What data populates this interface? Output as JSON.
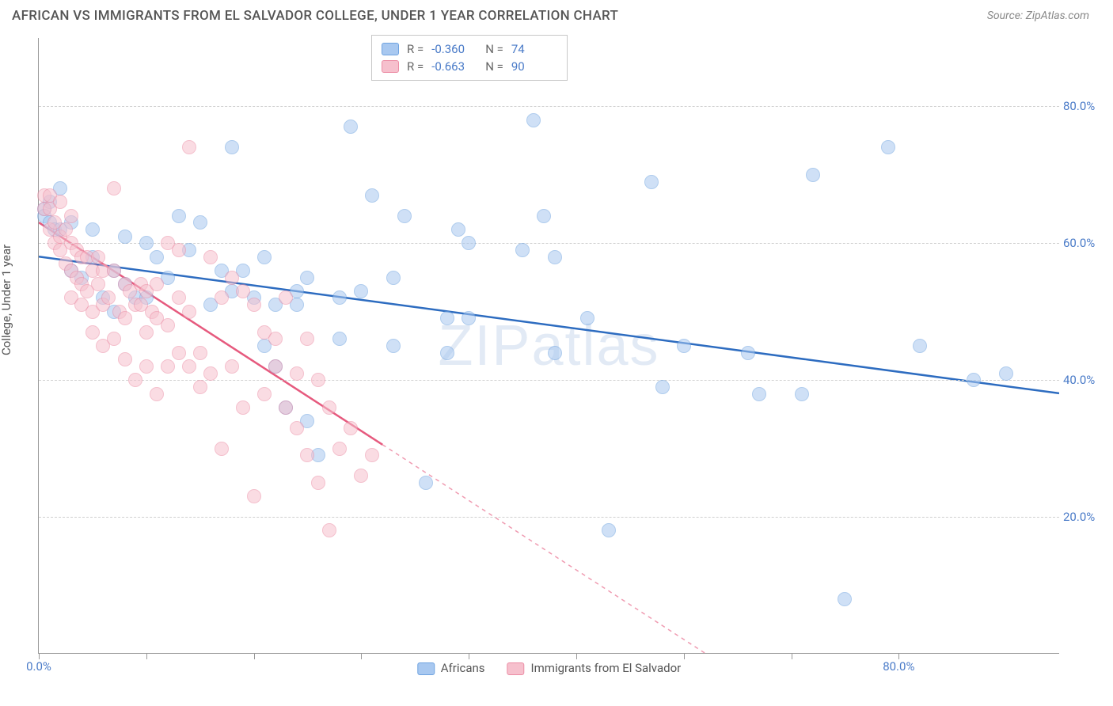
{
  "header": {
    "title": "AFRICAN VS IMMIGRANTS FROM EL SALVADOR COLLEGE, UNDER 1 YEAR CORRELATION CHART",
    "source_prefix": "Source: ",
    "source_name": "ZipAtlas.com"
  },
  "watermark": {
    "part1": "ZIP",
    "part2": "atlas"
  },
  "chart": {
    "type": "scatter",
    "y_axis_label": "College, Under 1 year",
    "xlim": [
      0,
      95
    ],
    "ylim": [
      0,
      90
    ],
    "x_ticks": [
      0,
      10,
      20,
      30,
      40,
      50,
      60,
      70,
      80
    ],
    "y_gridlines": [
      20,
      40,
      60,
      80
    ],
    "x_tick_labels": {
      "0": "0.0%",
      "80": "80.0%"
    },
    "y_tick_labels": {
      "20": "20.0%",
      "40": "40.0%",
      "60": "60.0%",
      "80": "80.0%"
    },
    "background_color": "#ffffff",
    "grid_color": "#d0d0d0",
    "axis_color": "#999999",
    "tick_label_color": "#4a7bc8",
    "marker_radius": 9,
    "marker_opacity": 0.55,
    "series": [
      {
        "name": "Africans",
        "color_fill": "#a8c8f0",
        "color_stroke": "#6fa3e0",
        "line_color": "#2d6cc0",
        "line_width": 2.5,
        "R": "-0.360",
        "N": "74",
        "regression": {
          "x1": 0,
          "y1": 58,
          "x2": 95,
          "y2": 38,
          "solid_until_x": 95
        },
        "points": [
          [
            0.5,
            65
          ],
          [
            0.5,
            64
          ],
          [
            1,
            66
          ],
          [
            1,
            63
          ],
          [
            1.5,
            62
          ],
          [
            2,
            62
          ],
          [
            2,
            68
          ],
          [
            3,
            63
          ],
          [
            3,
            56
          ],
          [
            4,
            55
          ],
          [
            5,
            62
          ],
          [
            5,
            58
          ],
          [
            6,
            52
          ],
          [
            7,
            56
          ],
          [
            7,
            50
          ],
          [
            8,
            61
          ],
          [
            8,
            54
          ],
          [
            9,
            52
          ],
          [
            10,
            52
          ],
          [
            10,
            60
          ],
          [
            11,
            58
          ],
          [
            12,
            55
          ],
          [
            13,
            64
          ],
          [
            14,
            59
          ],
          [
            15,
            63
          ],
          [
            16,
            51
          ],
          [
            17,
            56
          ],
          [
            18,
            74
          ],
          [
            18,
            53
          ],
          [
            19,
            56
          ],
          [
            20,
            52
          ],
          [
            21,
            58
          ],
          [
            21,
            45
          ],
          [
            22,
            42
          ],
          [
            22,
            51
          ],
          [
            23,
            36
          ],
          [
            24,
            53
          ],
          [
            24,
            51
          ],
          [
            25,
            55
          ],
          [
            25,
            34
          ],
          [
            26,
            29
          ],
          [
            28,
            46
          ],
          [
            28,
            52
          ],
          [
            29,
            77
          ],
          [
            30,
            53
          ],
          [
            31,
            67
          ],
          [
            33,
            55
          ],
          [
            33,
            45
          ],
          [
            34,
            64
          ],
          [
            36,
            25
          ],
          [
            38,
            49
          ],
          [
            38,
            44
          ],
          [
            39,
            62
          ],
          [
            40,
            49
          ],
          [
            40,
            60
          ],
          [
            45,
            59
          ],
          [
            46,
            78
          ],
          [
            47,
            64
          ],
          [
            48,
            58
          ],
          [
            48,
            44
          ],
          [
            51,
            49
          ],
          [
            53,
            18
          ],
          [
            57,
            69
          ],
          [
            58,
            39
          ],
          [
            60,
            45
          ],
          [
            66,
            44
          ],
          [
            67,
            38
          ],
          [
            71,
            38
          ],
          [
            72,
            70
          ],
          [
            75,
            8
          ],
          [
            79,
            74
          ],
          [
            82,
            45
          ],
          [
            87,
            40
          ],
          [
            90,
            41
          ]
        ]
      },
      {
        "name": "Immigrants from El Salvador",
        "color_fill": "#f6c0cd",
        "color_stroke": "#ec8da5",
        "line_color": "#e65a7e",
        "line_width": 2.5,
        "R": "-0.663",
        "N": "90",
        "regression": {
          "x1": 0,
          "y1": 63,
          "x2": 62,
          "y2": 0,
          "solid_until_x": 32
        },
        "points": [
          [
            0.5,
            67
          ],
          [
            0.5,
            65
          ],
          [
            1,
            67
          ],
          [
            1,
            65
          ],
          [
            1,
            62
          ],
          [
            1.5,
            63
          ],
          [
            1.5,
            60
          ],
          [
            2,
            66
          ],
          [
            2,
            61
          ],
          [
            2,
            59
          ],
          [
            2.5,
            62
          ],
          [
            2.5,
            57
          ],
          [
            3,
            64
          ],
          [
            3,
            60
          ],
          [
            3,
            56
          ],
          [
            3,
            52
          ],
          [
            3.5,
            59
          ],
          [
            3.5,
            55
          ],
          [
            4,
            58
          ],
          [
            4,
            54
          ],
          [
            4,
            51
          ],
          [
            4.5,
            58
          ],
          [
            4.5,
            53
          ],
          [
            5,
            56
          ],
          [
            5,
            50
          ],
          [
            5,
            47
          ],
          [
            5.5,
            58
          ],
          [
            5.5,
            54
          ],
          [
            6,
            56
          ],
          [
            6,
            51
          ],
          [
            6,
            45
          ],
          [
            6.5,
            52
          ],
          [
            7,
            68
          ],
          [
            7,
            56
          ],
          [
            7,
            46
          ],
          [
            7.5,
            50
          ],
          [
            8,
            54
          ],
          [
            8,
            49
          ],
          [
            8,
            43
          ],
          [
            8.5,
            53
          ],
          [
            9,
            51
          ],
          [
            9,
            40
          ],
          [
            9.5,
            51
          ],
          [
            9.5,
            54
          ],
          [
            10,
            53
          ],
          [
            10,
            47
          ],
          [
            10,
            42
          ],
          [
            10.5,
            50
          ],
          [
            11,
            54
          ],
          [
            11,
            49
          ],
          [
            11,
            38
          ],
          [
            12,
            48
          ],
          [
            12,
            60
          ],
          [
            12,
            42
          ],
          [
            13,
            52
          ],
          [
            13,
            44
          ],
          [
            13,
            59
          ],
          [
            14,
            50
          ],
          [
            14,
            42
          ],
          [
            14,
            74
          ],
          [
            15,
            44
          ],
          [
            15,
            39
          ],
          [
            16,
            58
          ],
          [
            16,
            41
          ],
          [
            17,
            52
          ],
          [
            17,
            30
          ],
          [
            18,
            55
          ],
          [
            18,
            42
          ],
          [
            19,
            53
          ],
          [
            19,
            36
          ],
          [
            20,
            51
          ],
          [
            20,
            23
          ],
          [
            21,
            47
          ],
          [
            21,
            38
          ],
          [
            22,
            46
          ],
          [
            22,
            42
          ],
          [
            23,
            52
          ],
          [
            23,
            36
          ],
          [
            24,
            41
          ],
          [
            24,
            33
          ],
          [
            25,
            46
          ],
          [
            25,
            29
          ],
          [
            26,
            40
          ],
          [
            26,
            25
          ],
          [
            27,
            36
          ],
          [
            27,
            18
          ],
          [
            28,
            30
          ],
          [
            29,
            33
          ],
          [
            30,
            26
          ],
          [
            31,
            29
          ]
        ]
      }
    ],
    "legend_top": {
      "labels": {
        "R": "R =",
        "N": "N ="
      }
    },
    "legend_bottom": {
      "items": [
        "Africans",
        "Immigrants from El Salvador"
      ]
    }
  }
}
